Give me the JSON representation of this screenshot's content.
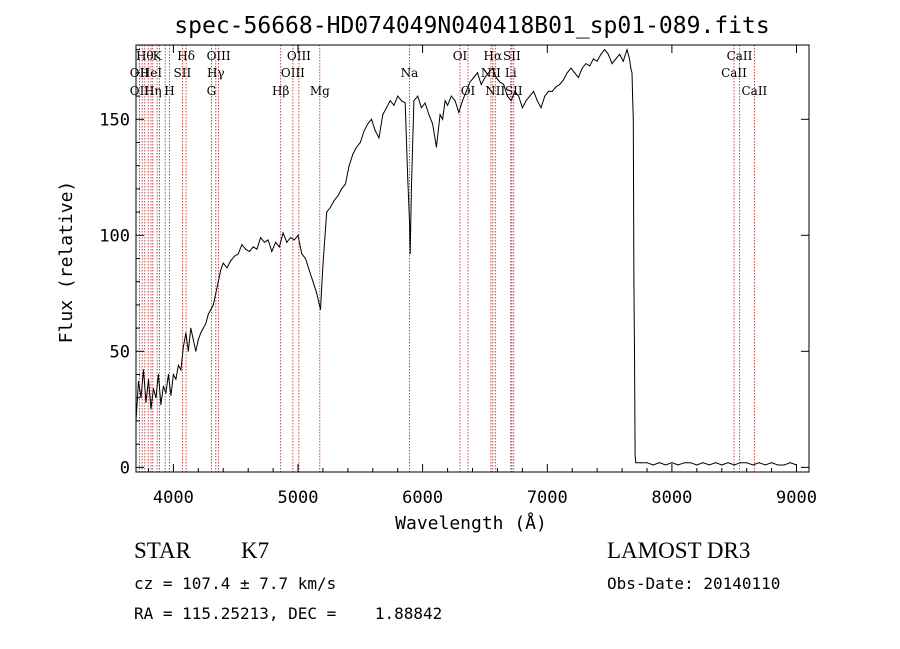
{
  "chart_data": {
    "type": "line",
    "title": "spec-56668-HD074049N040418B01_sp01-089.fits",
    "xlabel": "Wavelength (Å)",
    "ylabel": "Flux (relative)",
    "xlim": [
      3700,
      9100
    ],
    "ylim": [
      -2,
      182
    ],
    "xticks": [
      4000,
      5000,
      6000,
      7000,
      8000,
      9000
    ],
    "yticks": [
      0,
      50,
      100,
      150
    ],
    "grid": false,
    "series": [
      {
        "x": [
          3700,
          3720,
          3740,
          3760,
          3780,
          3800,
          3820,
          3840,
          3860,
          3880,
          3900,
          3920,
          3940,
          3960,
          3980,
          4000,
          4020,
          4040,
          4060,
          4080,
          4100,
          4120,
          4140,
          4160,
          4180,
          4200,
          4220,
          4240,
          4260,
          4280,
          4300,
          4320,
          4340,
          4360,
          4380,
          4400,
          4430,
          4460,
          4490,
          4520,
          4550,
          4580,
          4610,
          4640,
          4670,
          4700,
          4730,
          4760,
          4790,
          4820,
          4850,
          4880,
          4910,
          4940,
          4970,
          5000,
          5030,
          5060,
          5090,
          5120,
          5150,
          5180,
          5200,
          5230,
          5260,
          5290,
          5320,
          5350,
          5380,
          5410,
          5440,
          5470,
          5500,
          5530,
          5560,
          5590,
          5620,
          5650,
          5680,
          5710,
          5740,
          5770,
          5800,
          5830,
          5860,
          5880,
          5895,
          5900,
          5910,
          5930,
          5960,
          5990,
          6020,
          6050,
          6080,
          6110,
          6140,
          6160,
          6180,
          6200,
          6230,
          6260,
          6290,
          6320,
          6350,
          6380,
          6410,
          6440,
          6470,
          6500,
          6530,
          6560,
          6590,
          6620,
          6650,
          6680,
          6710,
          6740,
          6770,
          6800,
          6830,
          6860,
          6890,
          6920,
          6950,
          6980,
          7010,
          7040,
          7070,
          7100,
          7130,
          7160,
          7190,
          7220,
          7250,
          7280,
          7310,
          7340,
          7370,
          7400,
          7430,
          7460,
          7490,
          7520,
          7550,
          7580,
          7610,
          7640,
          7660,
          7670,
          7680,
          7685,
          7690,
          7695,
          7700,
          7705,
          7710,
          7750,
          7800,
          7850,
          7900,
          7950,
          8000,
          8050,
          8100,
          8150,
          8200,
          8250,
          8300,
          8350,
          8400,
          8450,
          8500,
          8550,
          8600,
          8650,
          8700,
          8750,
          8800,
          8850,
          8900,
          8950,
          9000
        ],
        "y": [
          20,
          37,
          30,
          42,
          28,
          38,
          25,
          34,
          30,
          40,
          27,
          35,
          32,
          40,
          31,
          40,
          38,
          44,
          42,
          52,
          58,
          50,
          60,
          55,
          50,
          55,
          58,
          60,
          62,
          66,
          68,
          70,
          75,
          80,
          85,
          88,
          86,
          89,
          91,
          92,
          96,
          94,
          93,
          95,
          94,
          99,
          97,
          98,
          93,
          97,
          95,
          101,
          97,
          99,
          98,
          100,
          92,
          90,
          85,
          80,
          75,
          68,
          87,
          110,
          112,
          115,
          117,
          120,
          122,
          130,
          135,
          138,
          140,
          145,
          148,
          150,
          145,
          142,
          152,
          155,
          158,
          156,
          160,
          158,
          157,
          125,
          105,
          92,
          120,
          158,
          160,
          155,
          157,
          152,
          148,
          138,
          152,
          150,
          158,
          156,
          160,
          158,
          153,
          158,
          162,
          166,
          168,
          170,
          165,
          168,
          170,
          172,
          168,
          166,
          165,
          160,
          158,
          162,
          160,
          155,
          158,
          160,
          162,
          158,
          155,
          160,
          162,
          162,
          164,
          165,
          167,
          170,
          172,
          170,
          168,
          172,
          174,
          173,
          176,
          175,
          178,
          180,
          178,
          174,
          176,
          178,
          175,
          180,
          176,
          172,
          170,
          160,
          150,
          80,
          50,
          5,
          2,
          2,
          2,
          1,
          2,
          1,
          2,
          1,
          2,
          2,
          1,
          2,
          1,
          2,
          1,
          2,
          1,
          2,
          2,
          1,
          2,
          1,
          2,
          1,
          1,
          2,
          1
        ]
      }
    ],
    "lines": [
      {
        "x": 3727,
        "label": "OII"
      },
      {
        "x": 3750,
        "label": "OII"
      },
      {
        "x": 3771,
        "label": "Hθ"
      },
      {
        "x": 3798,
        "label": "Hη"
      },
      {
        "x": 3820,
        "label": "HeI"
      },
      {
        "x": 3835,
        "label": "Hη"
      },
      {
        "x": 3869,
        "label": "K"
      },
      {
        "x": 3889,
        "label": "H"
      },
      {
        "x": 3934,
        "label": "K"
      },
      {
        "x": 3969,
        "label": "H"
      },
      {
        "x": 4072,
        "label": "SII"
      },
      {
        "x": 4102,
        "label": "Hδ"
      },
      {
        "x": 4305,
        "label": "G"
      },
      {
        "x": 4340,
        "label": "Hγ"
      },
      {
        "x": 4363,
        "label": "OIII"
      },
      {
        "x": 4861,
        "label": "Hβ"
      },
      {
        "x": 4959,
        "label": "OIII"
      },
      {
        "x": 5007,
        "label": "OIII"
      },
      {
        "x": 5175,
        "label": "Mg"
      },
      {
        "x": 5894,
        "label": "Na"
      },
      {
        "x": 6300,
        "label": "OI"
      },
      {
        "x": 6364,
        "label": "OI"
      },
      {
        "x": 6548,
        "label": "NII"
      },
      {
        "x": 6563,
        "label": "Hα"
      },
      {
        "x": 6583,
        "label": "NII"
      },
      {
        "x": 6707,
        "label": "Li"
      },
      {
        "x": 6716,
        "label": "SII"
      },
      {
        "x": 6731,
        "label": "SII"
      },
      {
        "x": 8498,
        "label": "CaII"
      },
      {
        "x": 8542,
        "label": "CaII"
      },
      {
        "x": 8662,
        "label": "CaII"
      }
    ],
    "line_labels": [
      {
        "text": "Hθ",
        "x": 3771,
        "row": 1
      },
      {
        "text": "K",
        "x": 3869,
        "row": 1
      },
      {
        "text": "Hδ",
        "x": 4102,
        "row": 1
      },
      {
        "text": "OIII",
        "x": 4363,
        "row": 1
      },
      {
        "text": "OIII",
        "x": 5007,
        "row": 1
      },
      {
        "text": "OI",
        "x": 6300,
        "row": 1
      },
      {
        "text": "Hα",
        "x": 6563,
        "row": 1
      },
      {
        "text": "SII",
        "x": 6716,
        "row": 1
      },
      {
        "text": "CaII",
        "x": 8542,
        "row": 1
      },
      {
        "text": "OII",
        "x": 3727,
        "row": 2
      },
      {
        "text": "HeI",
        "x": 3820,
        "row": 2
      },
      {
        "text": "SII",
        "x": 4072,
        "row": 2
      },
      {
        "text": "Hγ",
        "x": 4340,
        "row": 2
      },
      {
        "text": "OIII",
        "x": 4959,
        "row": 2
      },
      {
        "text": "Na",
        "x": 5894,
        "row": 2
      },
      {
        "text": "NII",
        "x": 6548,
        "row": 2
      },
      {
        "text": "Li",
        "x": 6707,
        "row": 2
      },
      {
        "text": "CaII",
        "x": 8498,
        "row": 2
      },
      {
        "text": "OII",
        "x": 3727,
        "row": 3
      },
      {
        "text": "Hη",
        "x": 3835,
        "row": 3
      },
      {
        "text": "H",
        "x": 3969,
        "row": 3
      },
      {
        "text": "G",
        "x": 4305,
        "row": 3
      },
      {
        "text": "Hβ",
        "x": 4861,
        "row": 3
      },
      {
        "text": "Mg",
        "x": 5175,
        "row": 3
      },
      {
        "text": "OI",
        "x": 6364,
        "row": 3
      },
      {
        "text": "NII",
        "x": 6583,
        "row": 3
      },
      {
        "text": "SII",
        "x": 6731,
        "row": 3
      },
      {
        "text": "CaII",
        "x": 8662,
        "row": 3
      }
    ],
    "colors": {
      "spectrum": "#000000",
      "lines": "#b22222"
    }
  },
  "info": {
    "type": "STAR",
    "subclass": "K7",
    "survey": "LAMOST DR3",
    "cz": "cz = 107.4 ± 7.7 km/s",
    "obs_date": "Obs-Date: 20140110",
    "coords": "RA = 115.25213, DEC =    1.88842"
  }
}
